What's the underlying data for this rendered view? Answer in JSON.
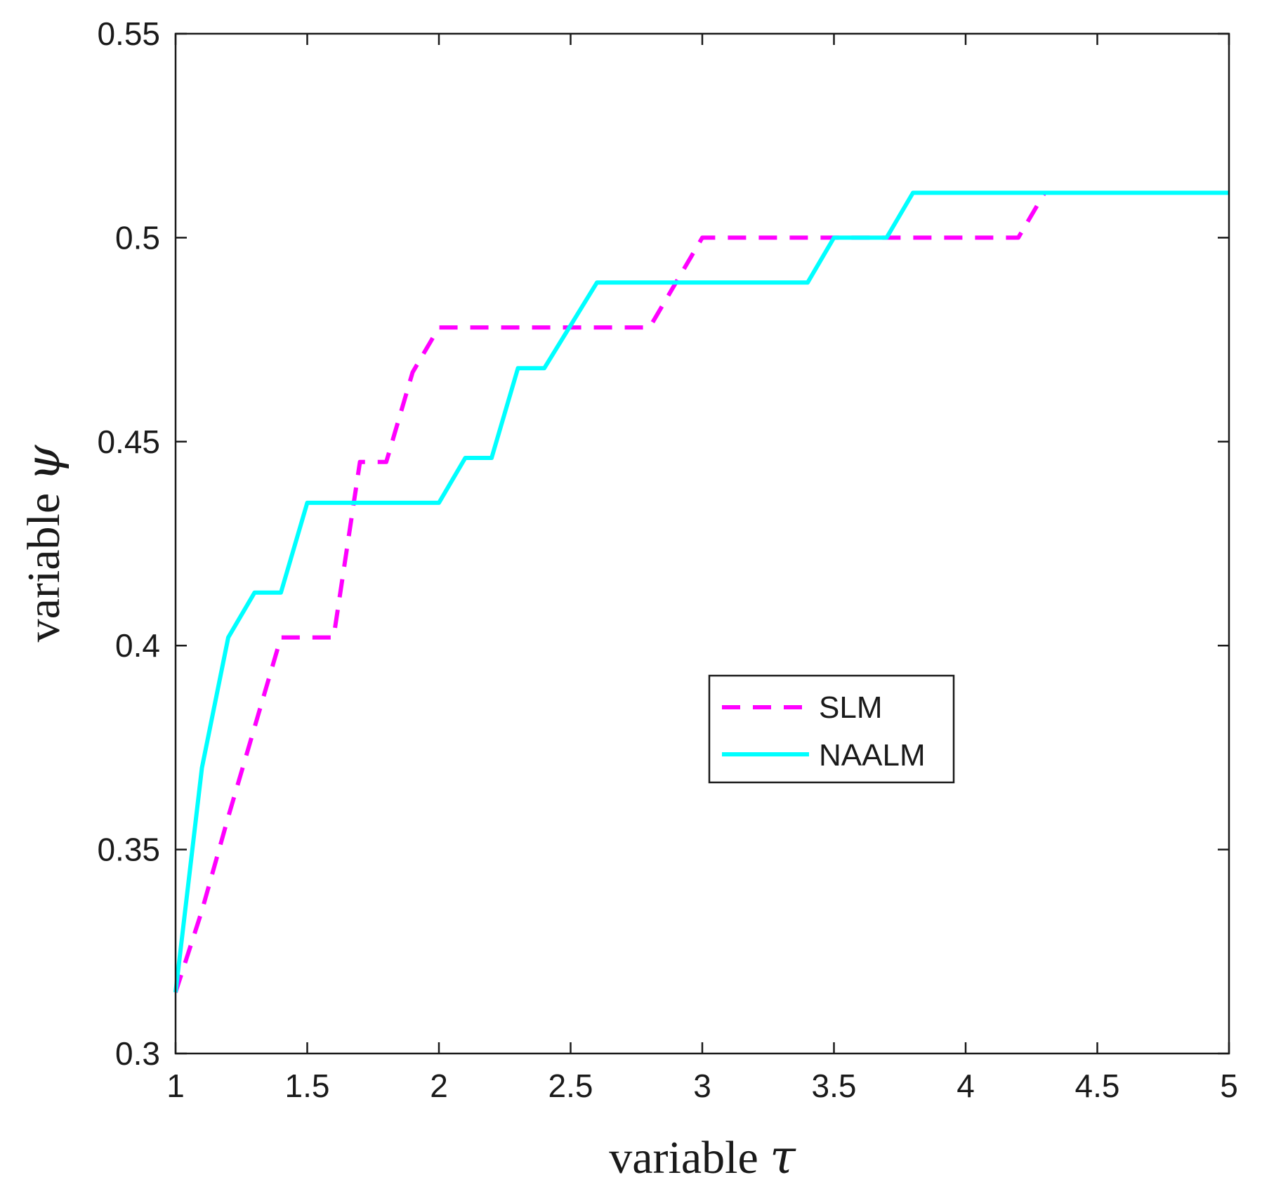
{
  "chart_data": {
    "type": "line",
    "xlabel": "variable τ",
    "xlabel_prefix": "variable ",
    "xlabel_symbol": "τ",
    "ylabel": "variable ψ",
    "ylabel_prefix": "variable ",
    "ylabel_symbol": "ψ",
    "xlim": [
      1,
      5
    ],
    "ylim": [
      0.3,
      0.55
    ],
    "xticks": [
      1,
      1.5,
      2,
      2.5,
      3,
      3.5,
      4,
      4.5,
      5
    ],
    "xtick_labels": [
      "1",
      "1.5",
      "2",
      "2.5",
      "3",
      "3.5",
      "4",
      "4.5",
      "5"
    ],
    "yticks": [
      0.3,
      0.35,
      0.4,
      0.45,
      0.5,
      0.55
    ],
    "ytick_labels": [
      "0.3",
      "0.35",
      "0.4",
      "0.45",
      "0.5",
      "0.55"
    ],
    "grid": false,
    "legend_position": "center-right",
    "series": [
      {
        "name": "SLM",
        "color": "#ff00ff",
        "style": "dashed",
        "x": [
          1,
          1.1,
          1.2,
          1.3,
          1.4,
          1.6,
          1.7,
          1.8,
          1.9,
          2.0,
          2.8,
          2.9,
          3.0,
          4.2,
          4.3,
          5.0
        ],
        "y": [
          0.315,
          0.335,
          0.358,
          0.38,
          0.402,
          0.402,
          0.445,
          0.445,
          0.467,
          0.478,
          0.478,
          0.489,
          0.5,
          0.5,
          0.511,
          0.511
        ]
      },
      {
        "name": "NAALM",
        "color": "#00ffff",
        "style": "solid",
        "x": [
          1,
          1.1,
          1.2,
          1.3,
          1.4,
          1.5,
          2.0,
          2.1,
          2.2,
          2.3,
          2.4,
          2.6,
          3.4,
          3.5,
          3.7,
          3.8,
          5.0
        ],
        "y": [
          0.315,
          0.37,
          0.402,
          0.413,
          0.413,
          0.435,
          0.435,
          0.446,
          0.446,
          0.468,
          0.468,
          0.489,
          0.489,
          0.5,
          0.5,
          0.511,
          0.511
        ]
      }
    ]
  }
}
